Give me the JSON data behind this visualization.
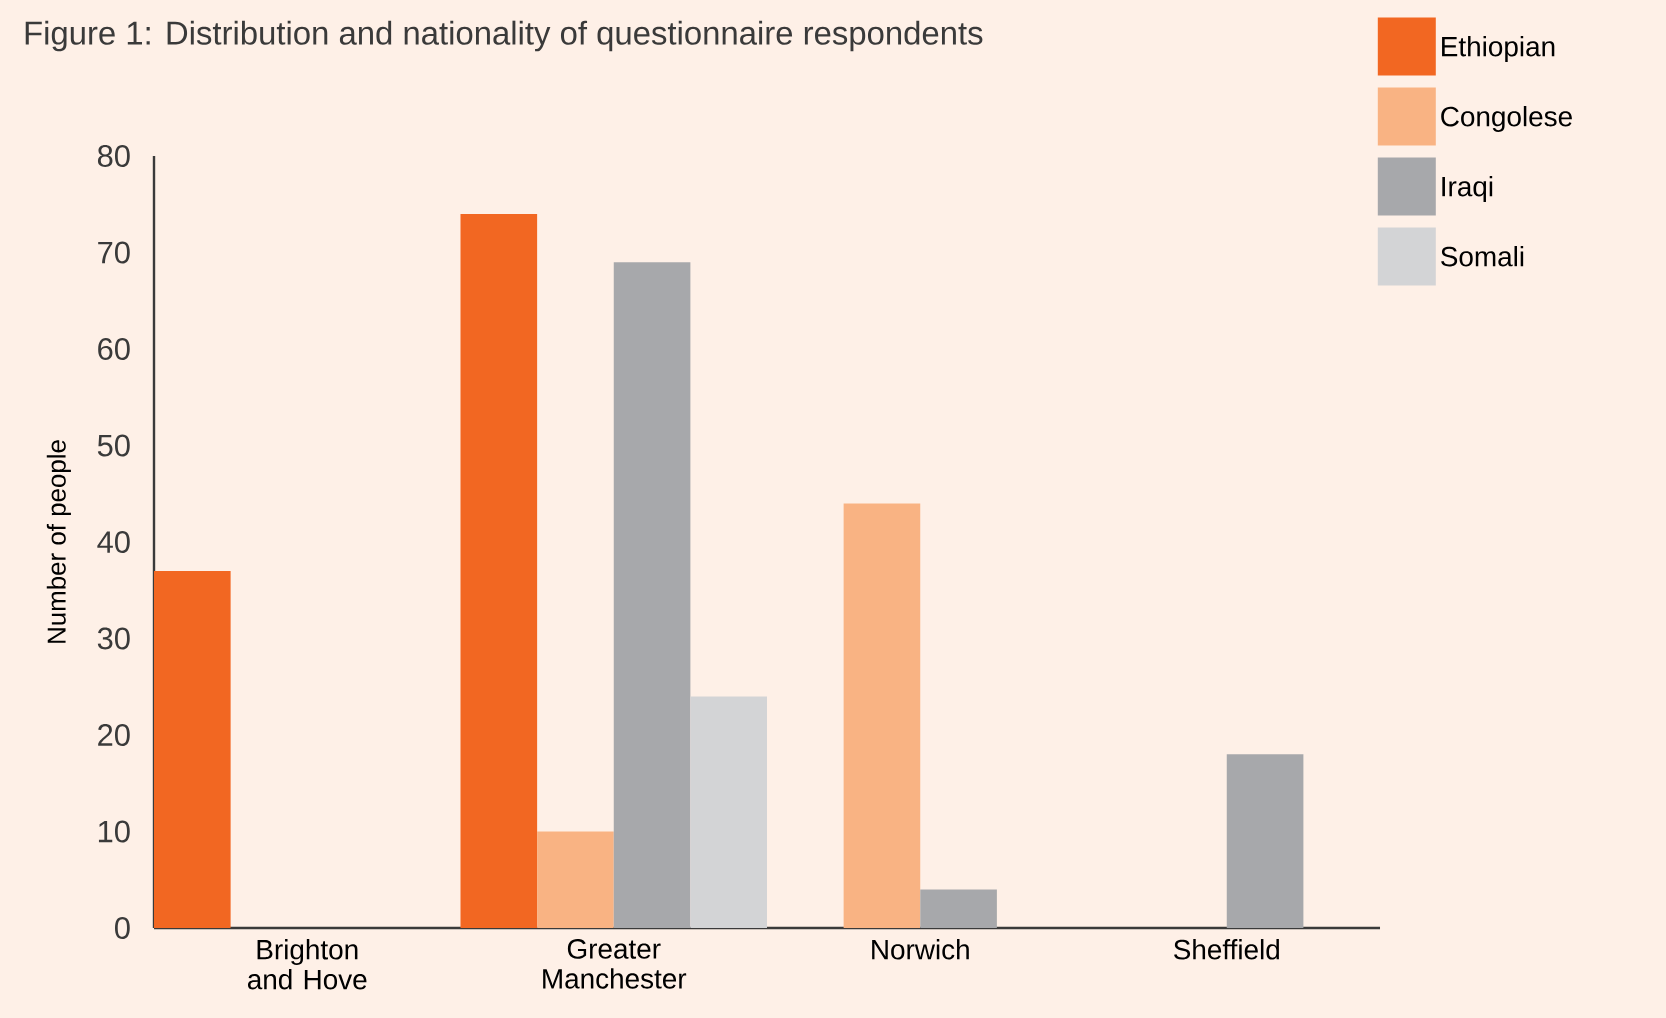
{
  "chart_data": {
    "type": "bar",
    "title": "Figure 1: Distribution and nationality of questionnaire respondents",
    "ylabel": "Number of people",
    "categories": [
      "Brighton and Hove",
      "Greater Manchester",
      "Norwich",
      "Sheffield"
    ],
    "series": [
      {
        "name": "Ethiopian",
        "color": "#f26722",
        "values": [
          37,
          74,
          null,
          null
        ]
      },
      {
        "name": "Congolese",
        "color": "#f9b383",
        "values": [
          null,
          10,
          44,
          null
        ]
      },
      {
        "name": "Iraqi",
        "color": "#a7a8ab",
        "values": [
          null,
          69,
          4,
          18
        ]
      },
      {
        "name": "Somali",
        "color": "#d3d4d6",
        "values": [
          null,
          24,
          null,
          null
        ]
      }
    ],
    "ylim": [
      0,
      80
    ],
    "yticks": [
      0,
      10,
      20,
      30,
      40,
      50,
      60,
      70,
      80
    ],
    "grid": false,
    "legend": "top right"
  }
}
